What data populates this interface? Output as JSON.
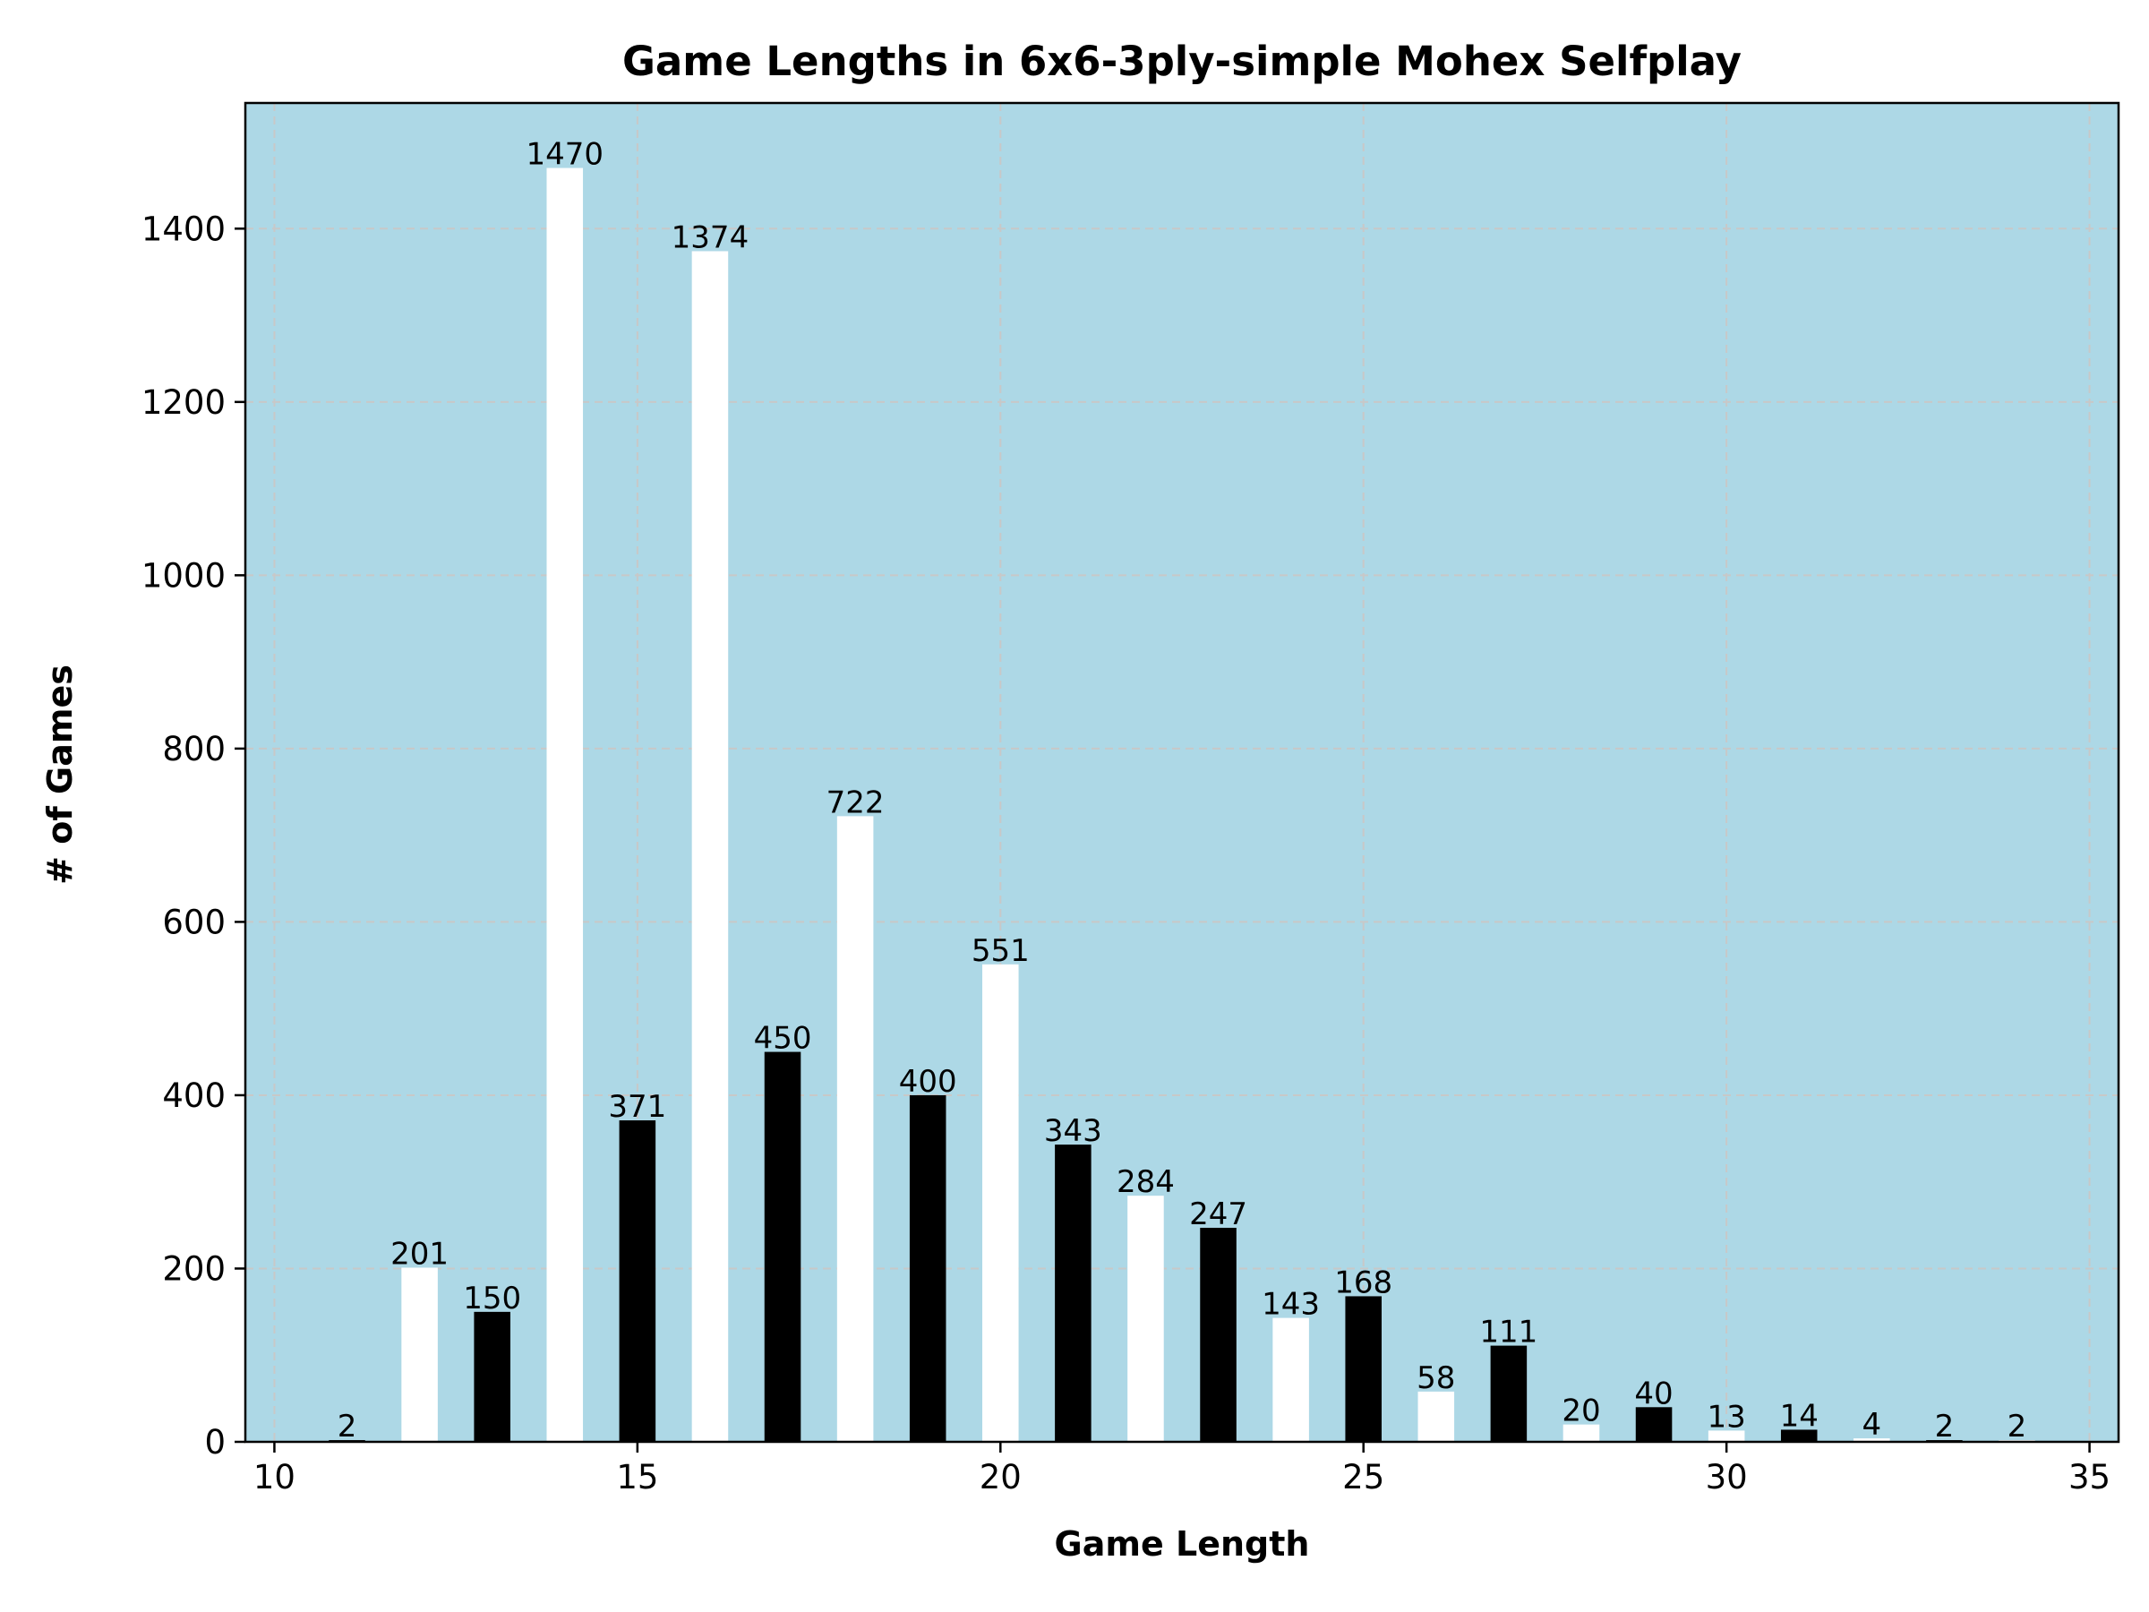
{
  "chart_data": {
    "type": "bar",
    "title": "Game Lengths in 6x6-3ply-simple Mohex Selfplay",
    "xlabel": "Game Length",
    "ylabel": "# of Games",
    "x": [
      11,
      12,
      13,
      14,
      15,
      16,
      17,
      18,
      19,
      20,
      21,
      22,
      23,
      24,
      25,
      26,
      27,
      28,
      29,
      30,
      31,
      32,
      33,
      34
    ],
    "values": [
      2,
      201,
      150,
      1470,
      371,
      1374,
      450,
      722,
      400,
      551,
      343,
      284,
      247,
      143,
      168,
      58,
      111,
      20,
      40,
      13,
      14,
      4,
      2,
      2
    ],
    "xlim": [
      9.6,
      35.4
    ],
    "ylim": [
      0,
      1545
    ],
    "xticks": [
      10,
      15,
      20,
      25,
      30,
      35
    ],
    "yticks": [
      0,
      200,
      400,
      600,
      800,
      1000,
      1200,
      1400
    ],
    "grid": true,
    "colors": {
      "background": "#add8e6",
      "odd_length_bar": "#000000",
      "even_length_bar": "#ffffff"
    }
  }
}
